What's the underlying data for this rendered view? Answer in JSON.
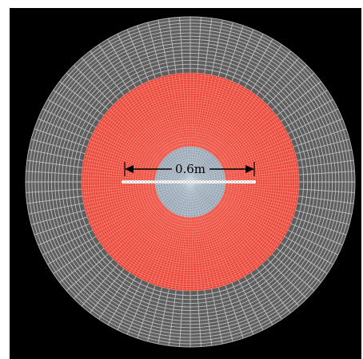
{
  "figure": {
    "dimension_label": "0.6m"
  },
  "colors": {
    "background": "#000000",
    "outer_mesh_fill": "#5e5e5e",
    "outer_mesh_lines": "#c8c8c8",
    "inner_mesh_fill": "#e8473a",
    "inner_mesh_lines": "#ff9a8c",
    "core_fill": "#9aa7b5",
    "core_lines": "#d6e2ea",
    "crack": "#ffffff",
    "dimension_line": "#000000"
  },
  "mesh": {
    "outer_radial_lines": 96,
    "outer_rings": 16,
    "inner_radial_lines": 180,
    "inner_rings": 30,
    "core_radial_lines": 72,
    "core_rings": 12
  }
}
